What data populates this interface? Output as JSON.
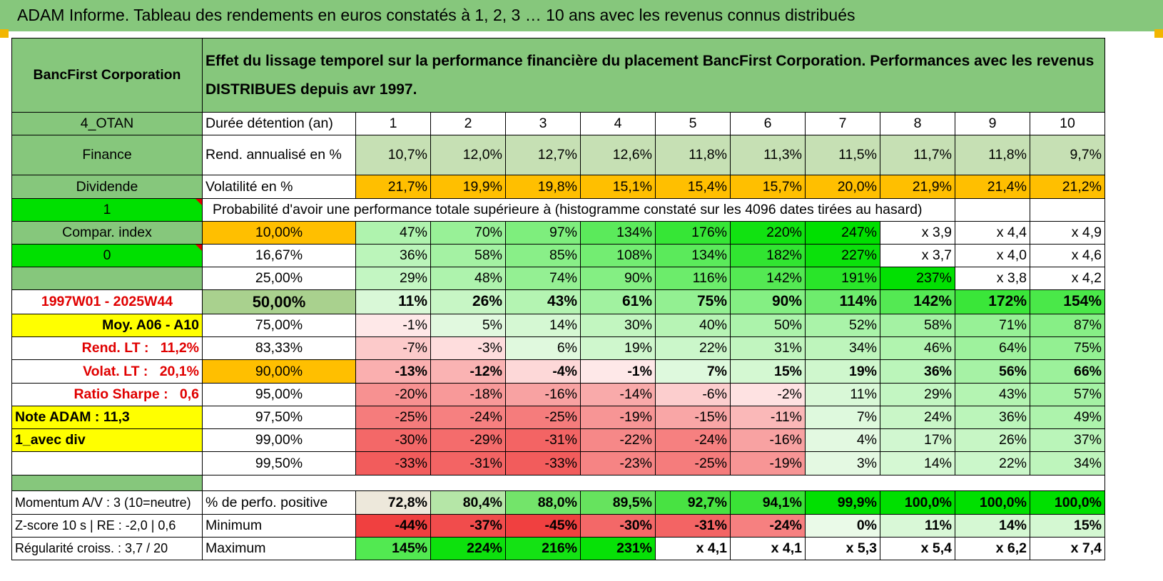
{
  "banner_title": "ADAM Informe. Tableau des rendements en euros constatés à 1, 2, 3 … 10 ans avec les revenus connus distribués",
  "company": "BancFirst Corporation",
  "description": "Effet du lissage temporel sur la performance financière du placement BancFirst Corporation. Performances avec les revenus DISTRIBUES depuis avr 1997.",
  "info": {
    "code": "4_OTAN",
    "sector": "Finance",
    "type": "Dividende",
    "flag1": "1",
    "compar_index": "Compar. index",
    "flag0": "0",
    "period": "1997W01 - 2025W44",
    "moy": "Moy. A06 - A10",
    "rend_lt_label": "Rend. LT :",
    "rend_lt_value": "11,2%",
    "volat_lt_label": "Volat. LT :",
    "volat_lt_value": "20,1%",
    "sharpe_label": "Ratio Sharpe :",
    "sharpe_value": "0,6",
    "note": "Note ADAM : 11,3",
    "avec_div": "1_avec div",
    "momentum": "Momentum A/V : 3 (10=neutre)",
    "zscore": "Z-score 10 s | RE : -2,0 | 0,6",
    "regularite": "Régularité croiss. : 3,7 / 20"
  },
  "durations_label": "Durée détention (an)",
  "durations": [
    "1",
    "2",
    "3",
    "4",
    "5",
    "6",
    "7",
    "8",
    "9",
    "10"
  ],
  "rend_label": "Rend. annualisé en %",
  "rend": [
    "10,7%",
    "12,0%",
    "12,7%",
    "12,6%",
    "11,8%",
    "11,3%",
    "11,5%",
    "11,7%",
    "11,8%",
    "9,7%"
  ],
  "vol_label": "Volatilité en %",
  "vol": [
    "21,7%",
    "19,9%",
    "19,8%",
    "15,1%",
    "15,4%",
    "15,7%",
    "20,0%",
    "21,9%",
    "21,4%",
    "21,2%"
  ],
  "proba_header": "Probabilité d'avoir une performance totale supérieure à (histogramme constaté sur les 4096 dates tirées au hasard)",
  "quantiles": [
    {
      "label": "10,00%",
      "values": [
        "47%",
        "70%",
        "97%",
        "134%",
        "176%",
        "220%",
        "247%",
        "x 3,9",
        "x 4,4",
        "x 4,9"
      ]
    },
    {
      "label": "16,67%",
      "values": [
        "36%",
        "58%",
        "85%",
        "108%",
        "134%",
        "182%",
        "227%",
        "x 3,7",
        "x 4,0",
        "x 4,6"
      ]
    },
    {
      "label": "25,00%",
      "values": [
        "29%",
        "48%",
        "74%",
        "90%",
        "116%",
        "142%",
        "191%",
        "237%",
        "x 3,8",
        "x 4,2"
      ]
    },
    {
      "label": "50,00%",
      "values": [
        "11%",
        "26%",
        "43%",
        "61%",
        "75%",
        "90%",
        "114%",
        "142%",
        "172%",
        "154%"
      ]
    },
    {
      "label": "75,00%",
      "values": [
        "-1%",
        "5%",
        "14%",
        "30%",
        "40%",
        "50%",
        "52%",
        "58%",
        "71%",
        "87%"
      ]
    },
    {
      "label": "83,33%",
      "values": [
        "-7%",
        "-3%",
        "6%",
        "19%",
        "22%",
        "31%",
        "34%",
        "46%",
        "64%",
        "75%"
      ]
    },
    {
      "label": "90,00%",
      "values": [
        "-13%",
        "-12%",
        "-4%",
        "-1%",
        "7%",
        "15%",
        "19%",
        "36%",
        "56%",
        "66%"
      ]
    },
    {
      "label": "95,00%",
      "values": [
        "-20%",
        "-18%",
        "-16%",
        "-14%",
        "-6%",
        "-2%",
        "11%",
        "29%",
        "43%",
        "57%"
      ]
    },
    {
      "label": "97,50%",
      "values": [
        "-25%",
        "-24%",
        "-25%",
        "-19%",
        "-15%",
        "-11%",
        "7%",
        "24%",
        "36%",
        "49%"
      ]
    },
    {
      "label": "99,00%",
      "values": [
        "-30%",
        "-29%",
        "-31%",
        "-22%",
        "-24%",
        "-16%",
        "4%",
        "17%",
        "26%",
        "37%"
      ]
    },
    {
      "label": "99,50%",
      "values": [
        "-33%",
        "-31%",
        "-33%",
        "-23%",
        "-25%",
        "-19%",
        "3%",
        "14%",
        "22%",
        "34%"
      ]
    }
  ],
  "pos_label": "% de perfo. positive",
  "pos": [
    "72,8%",
    "80,4%",
    "88,0%",
    "89,5%",
    "92,7%",
    "94,1%",
    "99,9%",
    "100,0%",
    "100,0%",
    "100,0%"
  ],
  "min_label": "Minimum",
  "min": [
    "-44%",
    "-37%",
    "-45%",
    "-30%",
    "-31%",
    "-24%",
    "0%",
    "11%",
    "14%",
    "15%"
  ],
  "max_label": "Maximum",
  "max": [
    "145%",
    "224%",
    "216%",
    "231%",
    "x 4,1",
    "x 4,1",
    "x 5,3",
    "x 5,4",
    "x 6,2",
    "x 7,4"
  ],
  "colors": {
    "header_green": "#86c77c",
    "flag_green": "#00e000",
    "highlight_yellow": "#ffff00",
    "highlight_orange": "#ffbf00",
    "positive_green": "#00e000",
    "negative_red": "#f04040",
    "label_red": "#e00000"
  }
}
